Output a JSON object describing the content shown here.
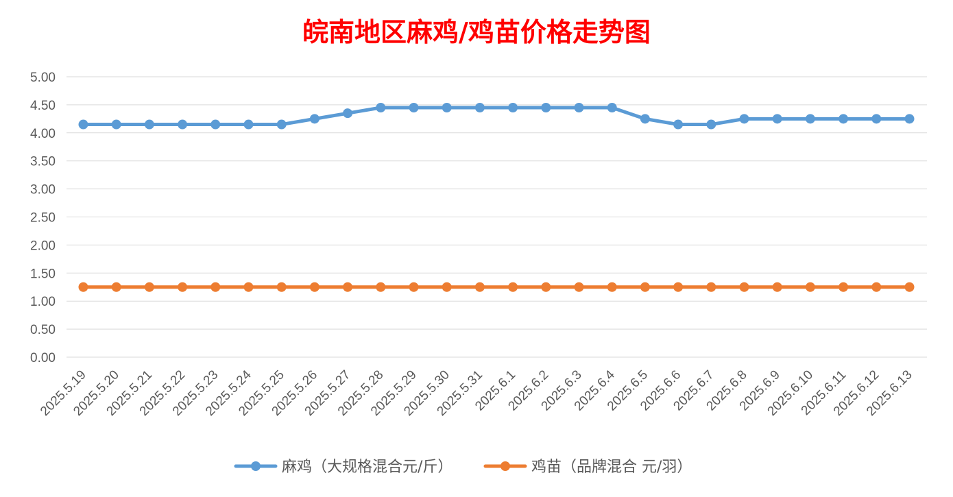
{
  "chart_data": {
    "type": "line",
    "title": "皖南地区麻鸡/鸡苗价格走势图",
    "xlabel": "",
    "ylabel": "",
    "ylim": [
      0,
      5
    ],
    "ytick_step": 0.5,
    "ytick_decimals": 2,
    "grid": true,
    "legend_position": "bottom",
    "categories": [
      "2025.5.19",
      "2025.5.20",
      "2025.5.21",
      "2025.5.22",
      "2025.5.23",
      "2025.5.24",
      "2025.5.25",
      "2025.5.26",
      "2025.5.27",
      "2025.5.28",
      "2025.5.29",
      "2025.5.30",
      "2025.5.31",
      "2025.6.1",
      "2025.6.2",
      "2025.6.3",
      "2025.6.4",
      "2025.6.5",
      "2025.6.6",
      "2025.6.7",
      "2025.6.8",
      "2025.6.9",
      "2025.6.10",
      "2025.6.11",
      "2025.6.12",
      "2025.6.13"
    ],
    "series": [
      {
        "name": "麻鸡（大规格混合元/斤）",
        "color": "#5b9bd5",
        "values": [
          4.15,
          4.15,
          4.15,
          4.15,
          4.15,
          4.15,
          4.15,
          4.25,
          4.35,
          4.45,
          4.45,
          4.45,
          4.45,
          4.45,
          4.45,
          4.45,
          4.45,
          4.25,
          4.15,
          4.15,
          4.25,
          4.25,
          4.25,
          4.25,
          4.25,
          4.25
        ]
      },
      {
        "name": "鸡苗（品牌混合 元/羽）",
        "color": "#ed7d31",
        "values": [
          1.25,
          1.25,
          1.25,
          1.25,
          1.25,
          1.25,
          1.25,
          1.25,
          1.25,
          1.25,
          1.25,
          1.25,
          1.25,
          1.25,
          1.25,
          1.25,
          1.25,
          1.25,
          1.25,
          1.25,
          1.25,
          1.25,
          1.25,
          1.25,
          1.25,
          1.25
        ]
      }
    ],
    "title_color": "#ff0000",
    "gridline_color": "#d9d9d9",
    "text_color": "#595959"
  }
}
